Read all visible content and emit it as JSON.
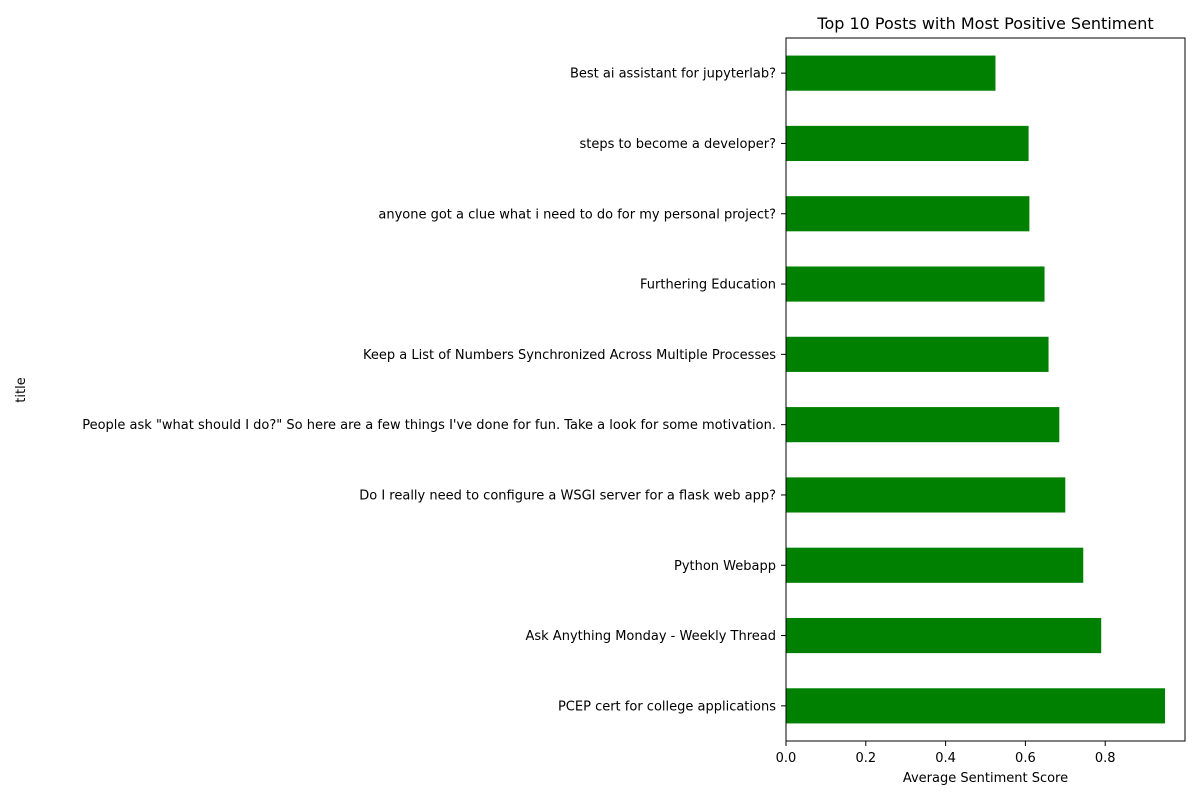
{
  "chart_data": {
    "type": "bar",
    "orientation": "horizontal",
    "title": "Top 10 Posts with Most Positive Sentiment",
    "xlabel": "Average Sentiment Score",
    "ylabel": "title",
    "xlim": [
      0,
      1.0
    ],
    "xticks": [
      0.0,
      0.2,
      0.4,
      0.6,
      0.8
    ],
    "xtick_labels": [
      "0.0",
      "0.2",
      "0.4",
      "0.6",
      "0.8"
    ],
    "grid": false,
    "bar_color": "#008000",
    "categories": [
      "PCEP cert for college applications",
      "Ask Anything Monday - Weekly Thread",
      "Python Webapp",
      "Do I really need to configure a WSGI server for a flask web app?",
      "People ask \"what should I do?\" So here are a few things I've done for fun. Take a look for some motivation.",
      "Keep a List of Numbers Synchronized Across Multiple Processes",
      "Furthering Education",
      "anyone got a clue what i need to do for my personal project?",
      "steps to become a developer?",
      "Best ai assistant for jupyterlab?"
    ],
    "values": [
      0.95,
      0.79,
      0.745,
      0.7,
      0.685,
      0.658,
      0.648,
      0.61,
      0.608,
      0.525
    ]
  }
}
